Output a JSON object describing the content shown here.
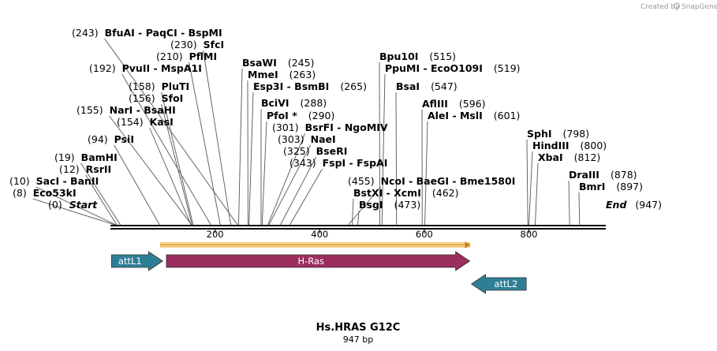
{
  "watermark": {
    "text": "Created by",
    "brand": "SnapGene"
  },
  "sequence": {
    "name": "Hs.HRAS G12C",
    "length_label": "947 bp",
    "length": 947
  },
  "ends": {
    "start_label": "Start",
    "start_pos": "(0)",
    "end_label": "End",
    "end_pos": "(947)"
  },
  "axis": {
    "ticks": [
      "200",
      "400",
      "600",
      "800"
    ]
  },
  "sites": [
    {
      "label": "Eco53kI",
      "pos": "(8)"
    },
    {
      "label": "SacI  -  BanII",
      "pos": "(10)"
    },
    {
      "label": "RsrII",
      "pos": "(12)"
    },
    {
      "label": "BamHI",
      "pos": "(19)"
    },
    {
      "label": "PsiI",
      "pos": "(94)"
    },
    {
      "label": "KasI",
      "pos": "(154)"
    },
    {
      "label": "NarI  -  BsaHI",
      "pos": "(155)"
    },
    {
      "label": "SfoI",
      "pos": "(156)"
    },
    {
      "label": "PluTI",
      "pos": "(158)"
    },
    {
      "label": "PvuII  -  MspA1I",
      "pos": "(192)"
    },
    {
      "label": "PflMI",
      "pos": "(210)"
    },
    {
      "label": "SfcI",
      "pos": "(230)"
    },
    {
      "label": "BfuAI  -  PaqCI  -  BspMI",
      "pos": "(243)"
    },
    {
      "label": "BsaWI",
      "pos": "(245)"
    },
    {
      "label": "MmeI",
      "pos": "(263)"
    },
    {
      "label": "Esp3I  -  BsmBI",
      "pos": "(265)"
    },
    {
      "label": "BciVI",
      "pos": "(288)"
    },
    {
      "label": "PfoI *",
      "pos": "(290)"
    },
    {
      "label": "BsrFI  -  NgoMIV",
      "pos": "(301)"
    },
    {
      "label": "NaeI",
      "pos": "(303)"
    },
    {
      "label": "BseRI",
      "pos": "(325)"
    },
    {
      "label": "FspI  -  FspAI",
      "pos": "(343)"
    },
    {
      "label": "NcoI  -  BaeGI  -  Bme1580I",
      "pos": "(455)"
    },
    {
      "label": "BstXI  -  XcmI",
      "pos": "(462)"
    },
    {
      "label": "BsgI",
      "pos": "(473)"
    },
    {
      "label": "Bpu10I",
      "pos": "(515)"
    },
    {
      "label": "PpuMI  -  EcoO109I",
      "pos": "(519)"
    },
    {
      "label": "BsaI",
      "pos": "(547)"
    },
    {
      "label": "AflIII",
      "pos": "(596)"
    },
    {
      "label": "AleI  -  MslI",
      "pos": "(601)"
    },
    {
      "label": "SphI",
      "pos": "(798)"
    },
    {
      "label": "HindIII",
      "pos": "(800)"
    },
    {
      "label": "XbaI",
      "pos": "(812)"
    },
    {
      "label": "DraIII",
      "pos": "(878)"
    },
    {
      "label": "BmrI",
      "pos": "(897)"
    }
  ],
  "features": {
    "orf": {
      "start": 96,
      "end": 687,
      "color": "#f5a623"
    },
    "attL1": {
      "label": "attL1",
      "start": 2,
      "end": 100,
      "color": "#2e7f96",
      "direction": "right"
    },
    "hras": {
      "label": "H-Ras",
      "start": 107,
      "end": 687,
      "color": "#9b2d5f",
      "direction": "right"
    },
    "attL2": {
      "label": "attL2",
      "start": 690,
      "end": 795,
      "color": "#2e7f96",
      "direction": "left"
    }
  }
}
